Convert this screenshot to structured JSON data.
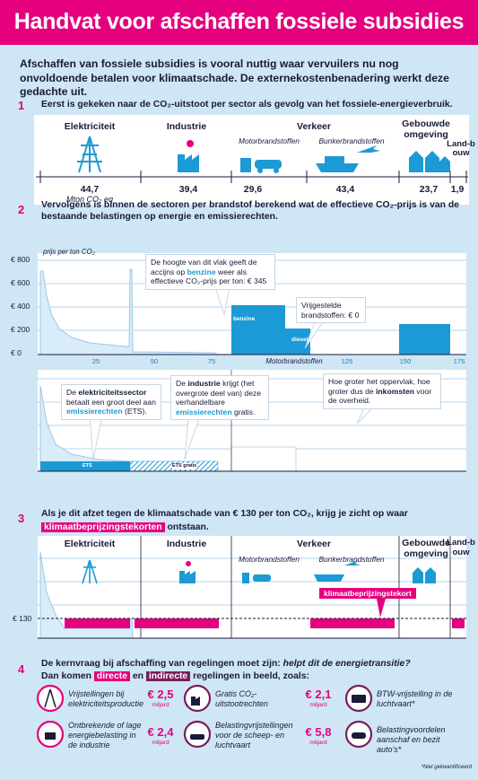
{
  "header": {
    "title": "Handvat voor afschaffen fossiele subsidies"
  },
  "intro": "Afschaffen van fossiele subsidies is vooral nuttig waar vervuilers nu nog onvoldoende betalen voor klimaatschade. De externekostenbenadering werkt deze gedachte uit.",
  "section1": {
    "number": "1",
    "text": "Eerst is gekeken naar de CO₂-uitstoot per sector als gevolg van het fossiele-energieverbruik.",
    "sectors": [
      "Elektriciteit",
      "Industrie",
      "Verkeer",
      "Gebouwde omgeving",
      "Land-bouw"
    ],
    "subsectors": [
      "Motorbrandstoffen",
      "Bunkerbrandstoffen"
    ],
    "values": [
      "44,7",
      "39,4",
      "29,6",
      "43,4",
      "23,7",
      "1,9"
    ],
    "unit": "Mton CO₂ eq"
  },
  "section2": {
    "number": "2",
    "text": "Vervolgens is binnen de sectoren per brandstof berekend wat de effectieve CO₂-prijs is van de bestaande belastingen op energie en emissierechten.",
    "axis_title": "prijs per ton CO₂",
    "yticks": [
      "€ 800",
      "€ 600",
      "€ 400",
      "€ 200",
      "€ 0"
    ],
    "xticks": [
      "25",
      "50",
      "75",
      "125",
      "150",
      "175"
    ],
    "bar_labels": [
      "benzine",
      "diesel",
      "ETS",
      "ETS gratis"
    ],
    "callouts": [
      [
        "De hoogte van dit vlak geeft de accijns op",
        "benzine",
        "weer als effectieve CO₂-prijs per ton: € 345"
      ],
      [
        "Vrijgestelde brandstoffen: € 0"
      ],
      [
        "De",
        "elektriciteitssector",
        "betaalt een groot deel aan",
        "emissierechten",
        "(ETS)."
      ],
      [
        "De",
        "industrie",
        "krijgt (het overgrote deel van) deze verhandelbare",
        "emissierechten",
        "gratis."
      ],
      [
        "Hoe groter het oppervlak, hoe groter dus de",
        "inkomsten",
        "voor de overheid."
      ]
    ]
  },
  "section3": {
    "number": "3",
    "text": [
      "Als je dit afzet tegen de klimaatschade van € 130 per ton CO₂, krijg je zicht op waar",
      "klimaatbeprijzingstekorten",
      "ontstaan."
    ],
    "price": "€ 130",
    "gap_label": "klimaatbeprijzingstekort"
  },
  "section4": {
    "number": "4",
    "question": [
      "De kernvraag bij afschaffing van regelingen moet zijn:",
      "helpt dit de energietransitie?"
    ],
    "lead": [
      "Dan komen",
      "directe",
      "en",
      "indirecte",
      "regelingen in beeld, zoals:"
    ],
    "items": [
      {
        "text": "Vrijstellingen bij elektriciteitsproductie",
        "amount": "€ 2,5",
        "unit": "miljard"
      },
      {
        "text": "Ontbrekende of lage energiebelasting in de industrie",
        "amount": "€ 2,4",
        "unit": "miljard"
      },
      {
        "text": "Gratis CO₂-uitstootrechten",
        "amount": "€ 2,1",
        "unit": "miljard"
      },
      {
        "text": "Belastingvrijstellingen voor de scheep- en luchtvaart",
        "amount": "€ 5,8",
        "unit": "miljard"
      },
      {
        "text": "BTW-vrijstelling in de luchtvaart*"
      },
      {
        "text": "Belastingvoordelen aanschaf en bezit auto's*"
      }
    ],
    "footnote": "*Niet gekwantificeerd"
  }
}
